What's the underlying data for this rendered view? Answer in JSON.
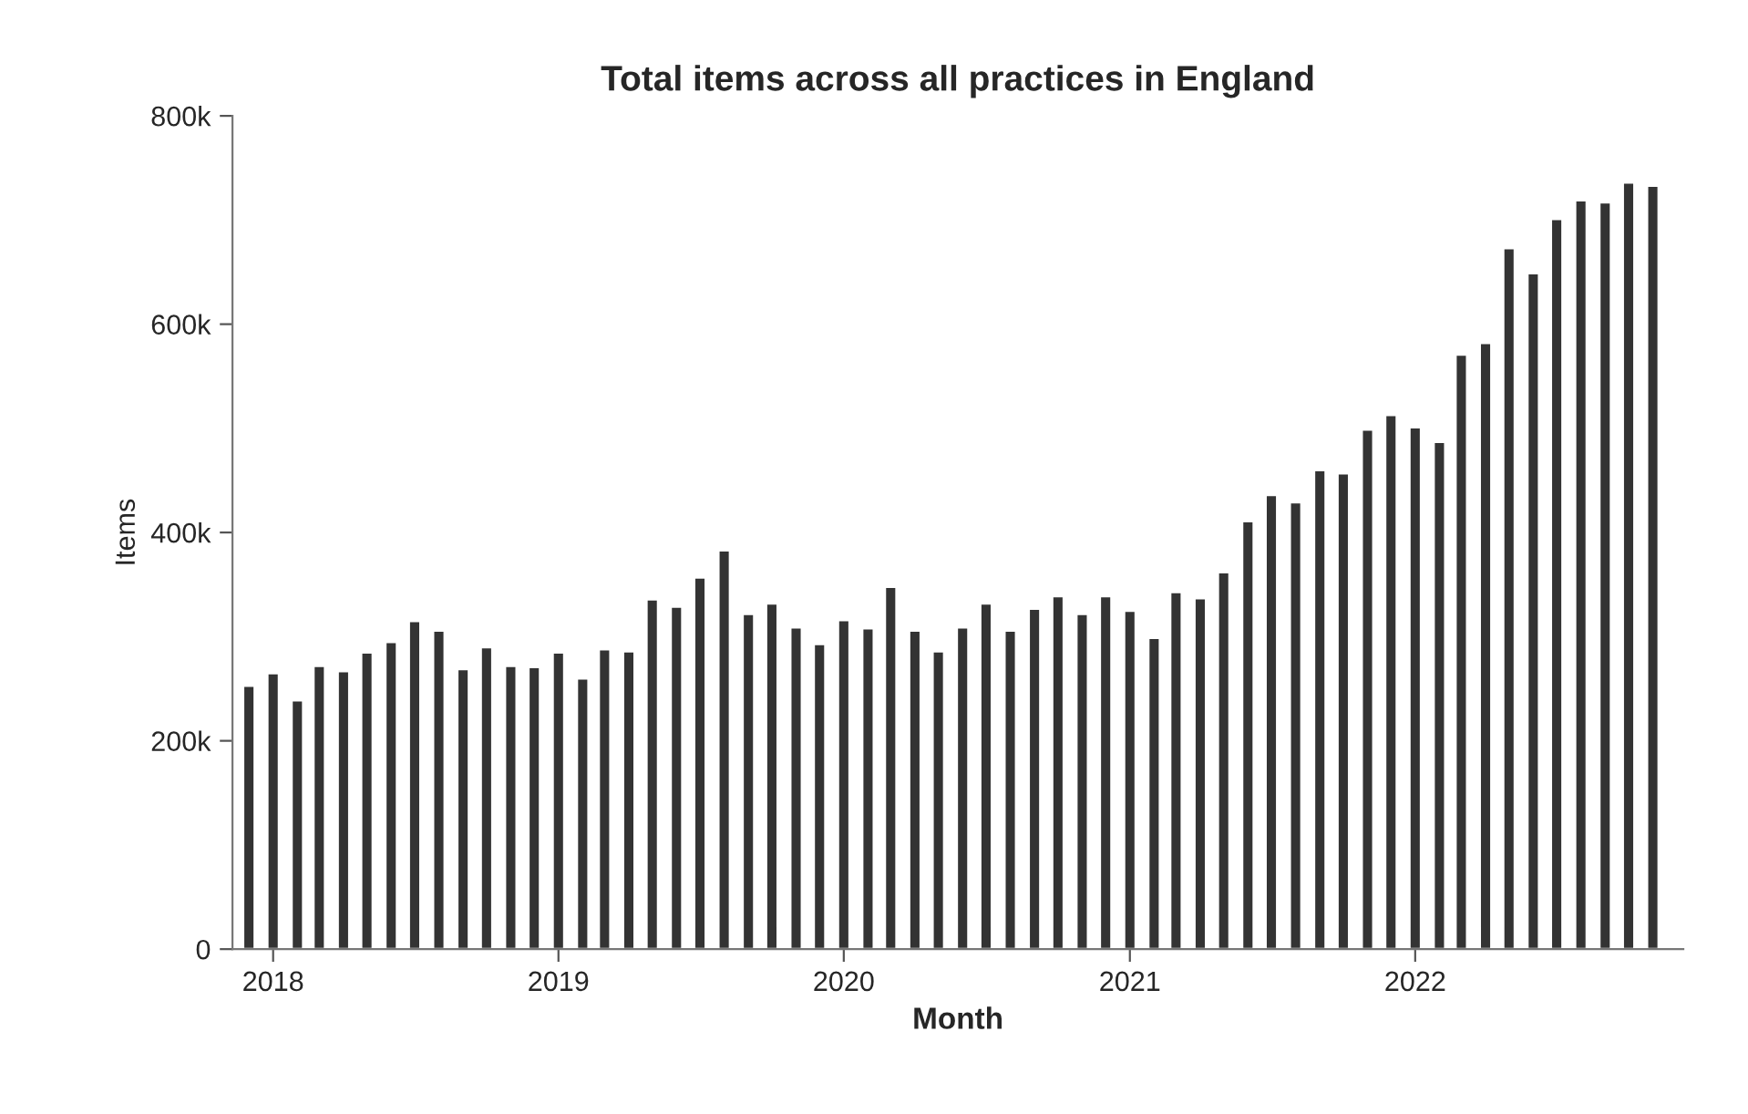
{
  "chart_data": {
    "type": "bar",
    "title": "Total items across all practices in England",
    "xlabel": "Month",
    "ylabel": "Items",
    "x": [
      "2017-12",
      "2018-01",
      "2018-02",
      "2018-03",
      "2018-04",
      "2018-05",
      "2018-06",
      "2018-07",
      "2018-08",
      "2018-09",
      "2018-10",
      "2018-11",
      "2018-12",
      "2019-01",
      "2019-02",
      "2019-03",
      "2019-04",
      "2019-05",
      "2019-06",
      "2019-07",
      "2019-08",
      "2019-09",
      "2019-10",
      "2019-11",
      "2019-12",
      "2020-01",
      "2020-02",
      "2020-03",
      "2020-04",
      "2020-05",
      "2020-06",
      "2020-07",
      "2020-08",
      "2020-09",
      "2020-10",
      "2020-11",
      "2020-12",
      "2021-01",
      "2021-02",
      "2021-03",
      "2021-04",
      "2021-05",
      "2021-06",
      "2021-07",
      "2021-08",
      "2021-09",
      "2021-10",
      "2021-11",
      "2021-12",
      "2022-01",
      "2022-02",
      "2022-03",
      "2022-04",
      "2022-05",
      "2022-06",
      "2022-07",
      "2022-08",
      "2022-09",
      "2022-10",
      "2022-11"
    ],
    "series": [
      {
        "color": "#333333",
        "values": [
          253000,
          265000,
          239000,
          272000,
          267000,
          285000,
          295000,
          315000,
          306000,
          269000,
          290000,
          272000,
          271000,
          285000,
          260000,
          288000,
          286000,
          336000,
          329000,
          357000,
          383000,
          322000,
          332000,
          309000,
          293000,
          316000,
          308000,
          348000,
          306000,
          286000,
          309000,
          332000,
          306000,
          327000,
          339000,
          322000,
          339000,
          325000,
          299000,
          343000,
          337000,
          362000,
          411000,
          436000,
          429000,
          460000,
          457000,
          499000,
          513000,
          501000,
          487000,
          571000,
          582000,
          673000,
          649000,
          701000,
          719000,
          717000,
          736000,
          733000
        ]
      }
    ],
    "xlim": [
      "2017-11-10",
      "2022-12-10"
    ],
    "xticks": [
      {
        "value": "2018-01",
        "label": "2018"
      },
      {
        "value": "2019-01",
        "label": "2019"
      },
      {
        "value": "2020-01",
        "label": "2020"
      },
      {
        "value": "2021-01",
        "label": "2021"
      },
      {
        "value": "2022-01",
        "label": "2022"
      }
    ],
    "ylim": [
      0,
      800000
    ],
    "yticks": [
      {
        "value": 0,
        "label": "0"
      },
      {
        "value": 200000,
        "label": "200k"
      },
      {
        "value": 400000,
        "label": "400k"
      },
      {
        "value": 600000,
        "label": "600k"
      },
      {
        "value": 800000,
        "label": "800k"
      }
    ],
    "grid": false,
    "legend": false
  }
}
